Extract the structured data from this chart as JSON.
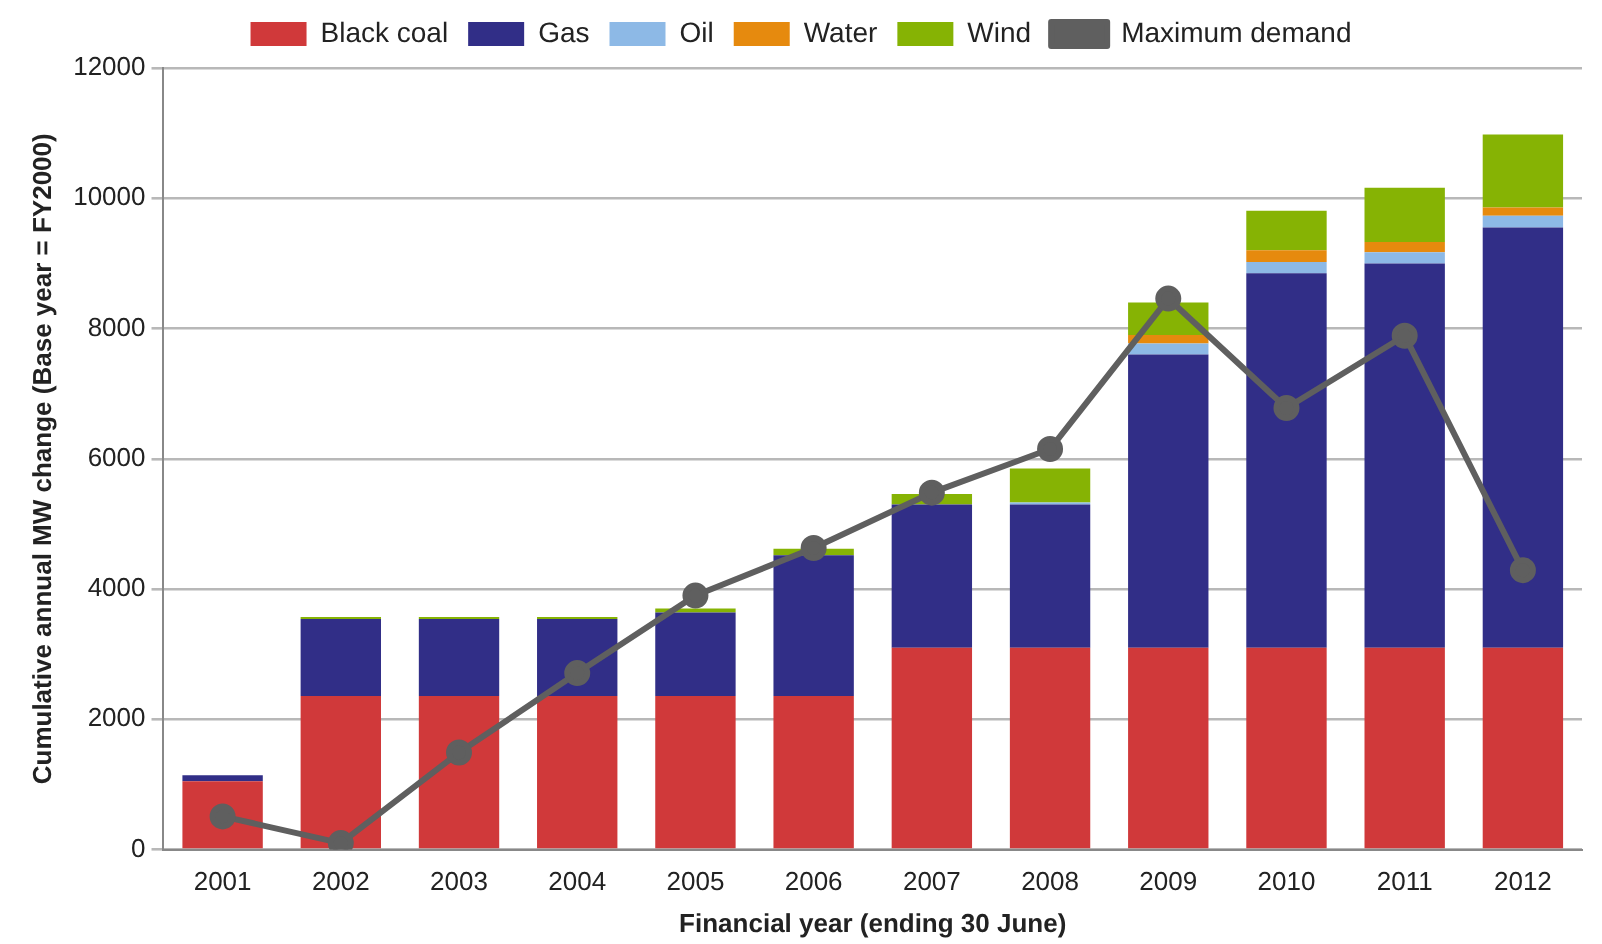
{
  "chart_data": {
    "type": "bar",
    "stacked": true,
    "xlabel": "Financial year (ending 30 June)",
    "ylabel": "Cumulative annual MW change (Base year = FY2000)",
    "categories": [
      "2001",
      "2002",
      "2003",
      "2004",
      "2005",
      "2006",
      "2007",
      "2008",
      "2009",
      "2010",
      "2011",
      "2012"
    ],
    "series": [
      {
        "name": "Black coal",
        "color": "#d0393a",
        "values": [
          1050,
          2360,
          2360,
          2360,
          2360,
          2360,
          3100,
          3100,
          3100,
          3100,
          3100,
          3100
        ]
      },
      {
        "name": "Gas",
        "color": "#312e87",
        "values": [
          90,
          1180,
          1180,
          1180,
          1280,
          2160,
          2200,
          2200,
          4500,
          5750,
          5900,
          6450
        ]
      },
      {
        "name": "Oil",
        "color": "#8db9e6",
        "values": [
          0,
          0,
          0,
          0,
          0,
          null,
          null,
          30,
          170,
          170,
          170,
          180
        ]
      },
      {
        "name": "Water",
        "color": "#e68a0e",
        "values": [
          0,
          0,
          0,
          0,
          0,
          0,
          0,
          0,
          130,
          180,
          160,
          130
        ]
      },
      {
        "name": "Wind",
        "color": "#86b304",
        "values": [
          0,
          30,
          30,
          30,
          60,
          100,
          160,
          520,
          500,
          610,
          830,
          1120
        ]
      },
      {
        "name": "Maximum demand",
        "type": "line",
        "color": "#5f5f5f",
        "marker": "circle",
        "values": [
          510,
          100,
          1490,
          2710,
          3900,
          4630,
          5480,
          6150,
          8460,
          6780,
          7890,
          4290
        ]
      }
    ],
    "ylim": [
      0,
      12000
    ],
    "yticks": [
      0,
      2000,
      4000,
      6000,
      8000,
      10000,
      12000
    ],
    "grid": "y",
    "legend": "top"
  }
}
